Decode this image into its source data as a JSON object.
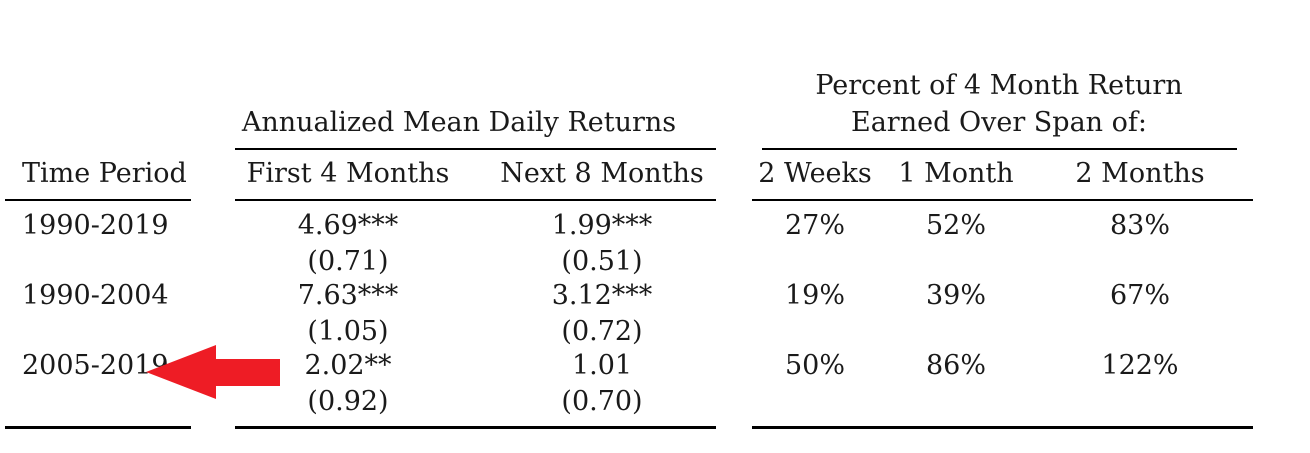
{
  "header": {
    "time_period": "Time Period",
    "group1_title": "Annualized Mean Daily Returns",
    "group2_title_line1": "Percent of 4 Month Return",
    "group2_title_line2": "Earned Over Span of:",
    "columns": [
      "First 4 Months",
      "Next 8 Months",
      "2 Weeks",
      "1 Month",
      "2 Months"
    ]
  },
  "rows": [
    {
      "period": "1990-2019",
      "first4": "4.69***",
      "first4_se": "(0.71)",
      "next8": "1.99***",
      "next8_se": "(0.51)",
      "pct": [
        "27%",
        "52%",
        "83%"
      ]
    },
    {
      "period": "1990-2004",
      "first4": "7.63***",
      "first4_se": "(1.05)",
      "next8": "3.12***",
      "next8_se": "(0.72)",
      "pct": [
        "19%",
        "39%",
        "67%"
      ]
    },
    {
      "period": "2005-2019",
      "first4": "2.02**",
      "first4_se": "(0.92)",
      "next8": "1.01",
      "next8_se": "(0.70)",
      "pct": [
        "50%",
        "86%",
        "122%"
      ]
    }
  ],
  "annotation": {
    "arrow_color": "#ee1c25"
  }
}
